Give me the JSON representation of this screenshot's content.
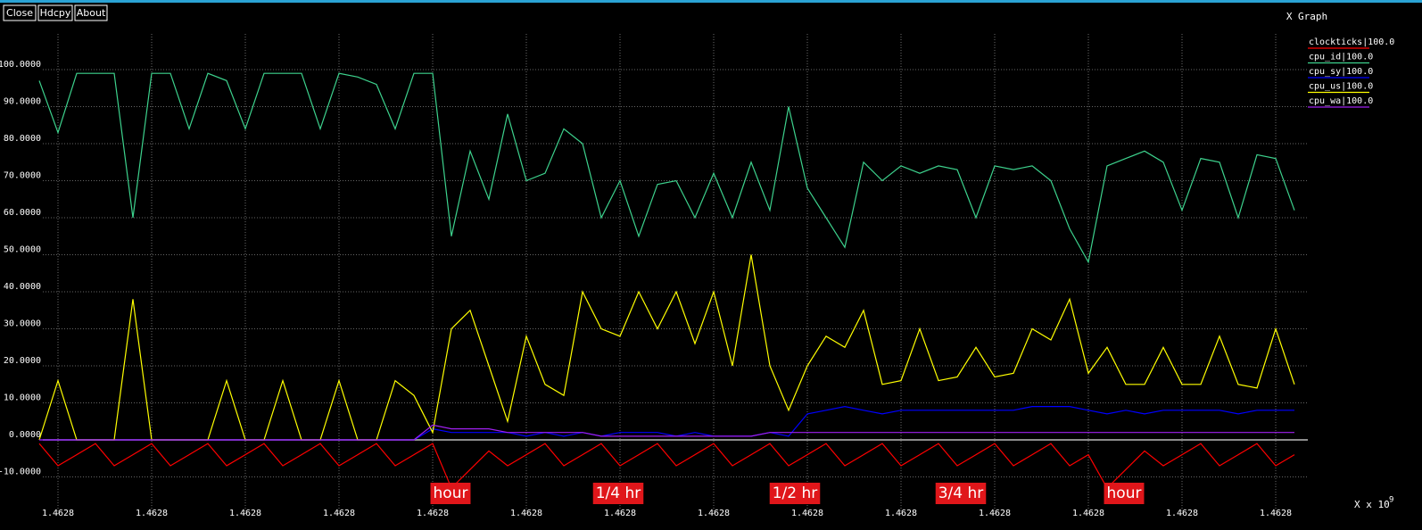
{
  "window": {
    "buttons": [
      "Close",
      "Hdcpy",
      "About"
    ]
  },
  "chart_data": {
    "type": "line",
    "title": "X Graph",
    "x_label": "X x 10",
    "x_label_exponent": "9",
    "xlim": [
      1.4627999,
      1.4628067
    ],
    "ylim": [
      -20,
      110
    ],
    "xticks": [
      {
        "value": 1.4628,
        "label": "1.4628"
      },
      {
        "value": 1.4628005,
        "label": "1.4628"
      },
      {
        "value": 1.462801,
        "label": "1.4628"
      },
      {
        "value": 1.4628015,
        "label": "1.4628"
      },
      {
        "value": 1.462802,
        "label": "1.4628"
      },
      {
        "value": 1.4628025,
        "label": "1.4628"
      },
      {
        "value": 1.462803,
        "label": "1.4628"
      },
      {
        "value": 1.4628035,
        "label": "1.4628"
      },
      {
        "value": 1.462804,
        "label": "1.4628"
      },
      {
        "value": 1.4628045,
        "label": "1.4628"
      },
      {
        "value": 1.462805,
        "label": "1.4628"
      },
      {
        "value": 1.4628055,
        "label": "1.4628"
      },
      {
        "value": 1.462806,
        "label": "1.4628"
      },
      {
        "value": 1.4628065,
        "label": "1.4628"
      }
    ],
    "yticks": [
      {
        "value": -10,
        "label": "-10.0000"
      },
      {
        "value": 0,
        "label": "0.0000"
      },
      {
        "value": 10,
        "label": "10.0000"
      },
      {
        "value": 20,
        "label": "20.0000"
      },
      {
        "value": 30,
        "label": "30.0000"
      },
      {
        "value": 40,
        "label": "40.0000"
      },
      {
        "value": 50,
        "label": "50.0000"
      },
      {
        "value": 60,
        "label": "60.0000"
      },
      {
        "value": 70,
        "label": "70.0000"
      },
      {
        "value": 80,
        "label": "80.0000"
      },
      {
        "value": 90,
        "label": "90.0000"
      },
      {
        "value": 100,
        "label": "100.0000"
      }
    ],
    "grid": true,
    "legend": "top-right",
    "annotations": [
      "hour",
      "1/4 hr",
      "1/2 hr",
      "3/4 hr",
      "hour"
    ],
    "x": [
      1.4627999,
      1.4628,
      1.4628001,
      1.4628002,
      1.4628003,
      1.4628004,
      1.4628005,
      1.4628006,
      1.4628007,
      1.4628008,
      1.4628009,
      1.462801,
      1.4628011,
      1.4628012,
      1.4628013,
      1.4628014,
      1.4628015,
      1.4628016,
      1.4628017,
      1.4628018,
      1.4628019,
      1.462802,
      1.4628021,
      1.4628022,
      1.4628023,
      1.4628024,
      1.4628025,
      1.4628026,
      1.4628027,
      1.4628028,
      1.4628029,
      1.462803,
      1.4628031,
      1.4628032,
      1.4628033,
      1.4628034,
      1.4628035,
      1.4628036,
      1.4628037,
      1.4628038,
      1.4628039,
      1.462804,
      1.4628041,
      1.4628042,
      1.4628043,
      1.4628044,
      1.4628045,
      1.4628046,
      1.4628047,
      1.4628048,
      1.4628049,
      1.462805,
      1.4628051,
      1.4628052,
      1.4628053,
      1.4628054,
      1.4628055,
      1.4628056,
      1.4628057,
      1.4628058,
      1.4628059,
      1.462806,
      1.4628061,
      1.4628062,
      1.4628063,
      1.4628064,
      1.4628065,
      1.4628066
    ],
    "series": [
      {
        "name": "clockticks|100.0",
        "color": "#ff0000",
        "values": [
          -1,
          -7,
          -4,
          -1,
          -7,
          -4,
          -1,
          -7,
          -4,
          -1,
          -7,
          -4,
          -1,
          -7,
          -4,
          -1,
          -7,
          -4,
          -1,
          -7,
          -4,
          -1,
          -13,
          -8,
          -3,
          -7,
          -4,
          -1,
          -7,
          -4,
          -1,
          -7,
          -4,
          -1,
          -7,
          -4,
          -1,
          -7,
          -4,
          -1,
          -7,
          -4,
          -1,
          -7,
          -4,
          -1,
          -7,
          -4,
          -1,
          -7,
          -4,
          -1,
          -7,
          -4,
          -1,
          -7,
          -4,
          -13,
          -8,
          -3,
          -7,
          -4,
          -1,
          -7,
          -4,
          -1,
          -7,
          -4
        ]
      },
      {
        "name": "cpu_id|100.0",
        "color": "#3dd28d",
        "values": [
          97,
          83,
          99,
          99,
          99,
          60,
          99,
          99,
          84,
          99,
          97,
          84,
          99,
          99,
          99,
          84,
          99,
          98,
          96,
          84,
          99,
          99,
          55,
          78,
          65,
          88,
          70,
          72,
          84,
          80,
          60,
          70,
          55,
          69,
          70,
          60,
          72,
          60,
          75,
          62,
          90,
          68,
          60,
          52,
          75,
          70,
          74,
          72,
          74,
          73,
          60,
          74,
          73,
          74,
          70,
          57,
          48,
          74,
          76,
          78,
          75,
          62,
          76,
          75,
          60,
          77,
          76,
          62
        ]
      },
      {
        "name": "cpu_sy|100.0",
        "color": "#0000ff",
        "values": [
          0,
          0,
          0,
          0,
          0,
          0,
          0,
          0,
          0,
          0,
          0,
          0,
          0,
          0,
          0,
          0,
          0,
          0,
          0,
          0,
          0,
          3,
          2,
          2,
          2,
          2,
          1,
          2,
          1,
          2,
          1,
          2,
          2,
          2,
          1,
          2,
          1,
          1,
          1,
          2,
          1,
          7,
          8,
          9,
          8,
          7,
          8,
          8,
          8,
          8,
          8,
          8,
          8,
          9,
          9,
          9,
          8,
          7,
          8,
          7,
          8,
          8,
          8,
          8,
          7,
          8,
          8,
          8
        ]
      },
      {
        "name": "cpu_us|100.0",
        "color": "#ffff00",
        "values": [
          0,
          16,
          0,
          0,
          0,
          38,
          0,
          0,
          0,
          0,
          16,
          0,
          0,
          16,
          0,
          0,
          16,
          0,
          0,
          16,
          12,
          2,
          30,
          35,
          20,
          5,
          28,
          15,
          12,
          40,
          30,
          28,
          40,
          30,
          40,
          26,
          40,
          20,
          50,
          20,
          8,
          20,
          28,
          25,
          35,
          15,
          16,
          30,
          16,
          17,
          25,
          17,
          18,
          30,
          27,
          38,
          18,
          25,
          15,
          15,
          25,
          15,
          15,
          28,
          15,
          14,
          30,
          15
        ]
      },
      {
        "name": "cpu_wa|100.0",
        "color": "#a020f0",
        "values": [
          0,
          0,
          0,
          0,
          0,
          0,
          0,
          0,
          0,
          0,
          0,
          0,
          0,
          0,
          0,
          0,
          0,
          0,
          0,
          0,
          0,
          4,
          3,
          3,
          3,
          2,
          2,
          2,
          2,
          2,
          1,
          1,
          1,
          1,
          1,
          1,
          1,
          1,
          1,
          2,
          2,
          2,
          2,
          2,
          2,
          2,
          2,
          2,
          2,
          2,
          2,
          2,
          2,
          2,
          2,
          2,
          2,
          2,
          2,
          2,
          2,
          2,
          2,
          2,
          2,
          2,
          2,
          2
        ]
      }
    ]
  }
}
